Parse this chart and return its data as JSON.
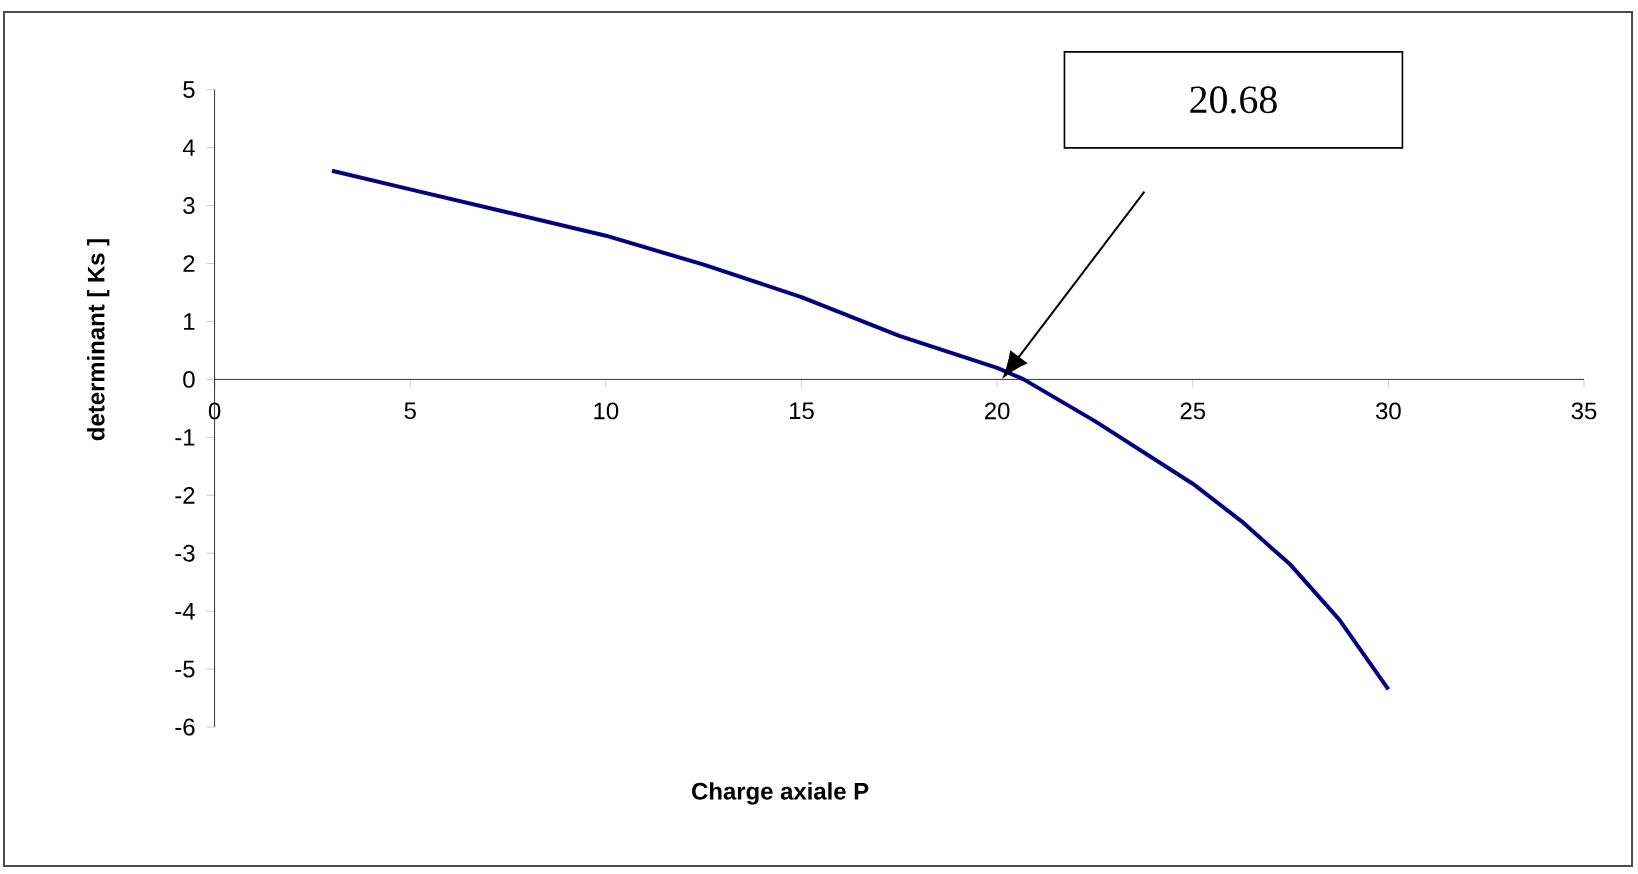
{
  "chart_data": {
    "type": "line",
    "xlabel": "Charge axiale P",
    "ylabel": "determinant [ Ks ]",
    "x": [
      3,
      5,
      7.5,
      10,
      12.5,
      15,
      17.5,
      20,
      20.68,
      22.5,
      25,
      26.25,
      27.5,
      28.75,
      30
    ],
    "series": [
      {
        "color": "#000080",
        "values": [
          3.6,
          3.28,
          2.88,
          2.48,
          1.98,
          1.42,
          0.75,
          0.2,
          0,
          -0.72,
          -1.8,
          -2.45,
          -3.2,
          -4.15,
          -5.35
        ]
      }
    ],
    "xlim": [
      0,
      35
    ],
    "ylim": [
      -6,
      5
    ],
    "xticks": [
      0,
      5,
      10,
      15,
      20,
      25,
      30,
      35
    ],
    "yticks": [
      -6,
      -5,
      -4,
      -3,
      -2,
      -1,
      0,
      1,
      2,
      3,
      4,
      5
    ],
    "marker": "none",
    "line_style": "solid",
    "annotations": [
      "20.68"
    ]
  }
}
